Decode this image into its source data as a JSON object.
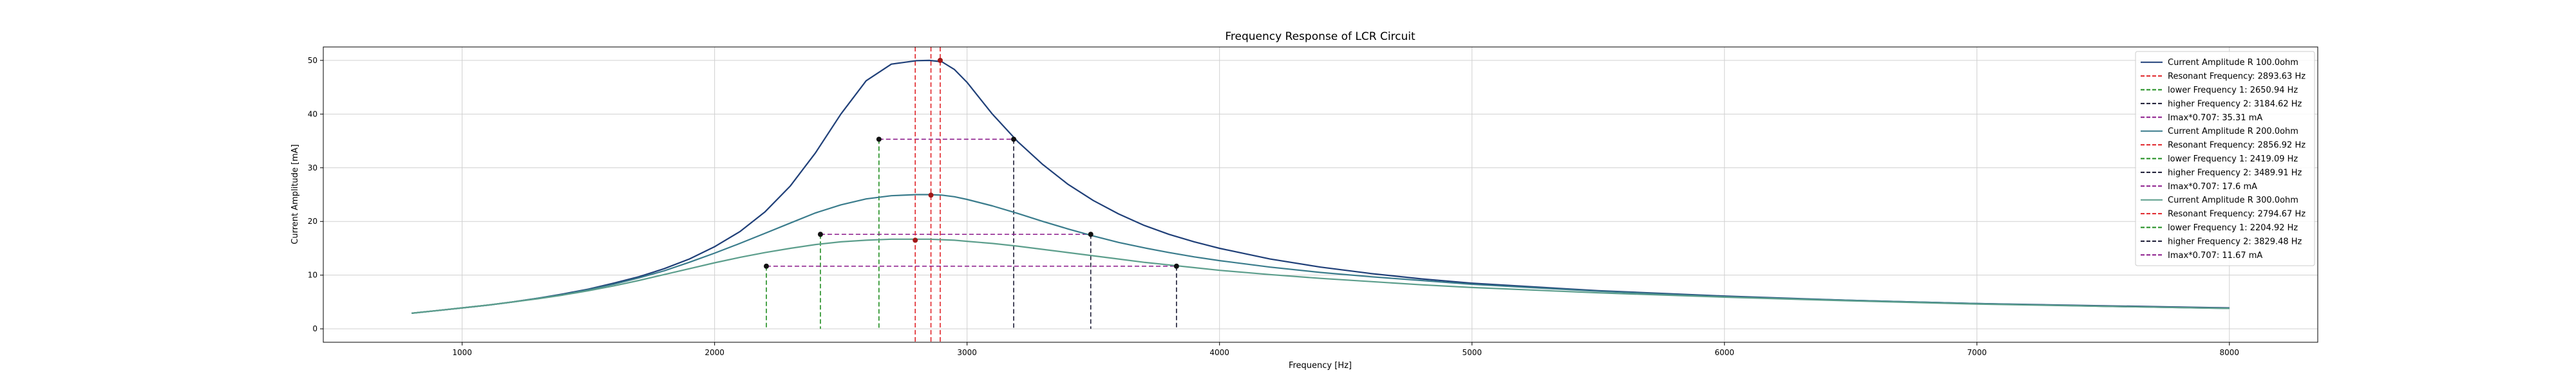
{
  "chart_data": {
    "type": "line",
    "title": "Frequency Response of LCR Circuit",
    "xlabel": "Frequency [Hz]",
    "ylabel": "Current Amplitude [mA]",
    "xlim": [
      450,
      8350
    ],
    "ylim": [
      -2.5,
      52.5
    ],
    "xticks": [
      1000,
      2000,
      3000,
      4000,
      5000,
      6000,
      7000,
      8000
    ],
    "yticks": [
      0,
      10,
      20,
      30,
      40,
      50
    ],
    "grid": true,
    "legend_position": "upper right",
    "x": [
      800,
      900,
      1000,
      1100,
      1200,
      1300,
      1400,
      1500,
      1600,
      1700,
      1800,
      1900,
      2000,
      2100,
      2200,
      2300,
      2400,
      2500,
      2600,
      2700,
      2800,
      2850,
      2900,
      2950,
      3000,
      3100,
      3200,
      3300,
      3400,
      3500,
      3600,
      3700,
      3800,
      3900,
      4000,
      4200,
      4400,
      4600,
      4800,
      5000,
      5500,
      6000,
      6500,
      7000,
      7500,
      8000
    ],
    "series": [
      {
        "name": "Current Amplitude R 100.0ohm",
        "color": "#1f3f78",
        "values": [
          2.9,
          3.4,
          3.9,
          4.4,
          5.0,
          5.7,
          6.5,
          7.4,
          8.5,
          9.7,
          11.2,
          13.0,
          15.3,
          18.1,
          21.8,
          26.6,
          32.8,
          40.0,
          46.2,
          49.3,
          49.95,
          50.0,
          49.75,
          48.3,
          45.9,
          40.0,
          34.9,
          30.6,
          26.9,
          23.9,
          21.4,
          19.3,
          17.6,
          16.2,
          15.0,
          13.0,
          11.5,
          10.3,
          9.3,
          8.5,
          7.1,
          6.1,
          5.3,
          4.7,
          4.3,
          3.9
        ]
      },
      {
        "name": "Current Amplitude R 200.0ohm",
        "color": "#3a7c8c",
        "values": [
          2.9,
          3.4,
          3.9,
          4.4,
          5.0,
          5.7,
          6.4,
          7.3,
          8.3,
          9.5,
          10.8,
          12.4,
          14.1,
          15.9,
          17.8,
          19.7,
          21.6,
          23.1,
          24.2,
          24.8,
          25.0,
          25.0,
          24.9,
          24.6,
          24.1,
          22.9,
          21.5,
          20.0,
          18.6,
          17.3,
          16.1,
          15.1,
          14.2,
          13.4,
          12.7,
          11.5,
          10.5,
          9.7,
          9.0,
          8.3,
          7.0,
          6.0,
          5.3,
          4.7,
          4.2,
          3.8
        ]
      },
      {
        "name": "Current Amplitude R 300.0ohm",
        "color": "#5c9e8c",
        "values": [
          2.9,
          3.4,
          3.9,
          4.4,
          5.0,
          5.6,
          6.3,
          7.1,
          8.0,
          9.0,
          10.1,
          11.2,
          12.3,
          13.3,
          14.2,
          15.0,
          15.7,
          16.2,
          16.5,
          16.7,
          16.7,
          16.7,
          16.6,
          16.5,
          16.3,
          15.9,
          15.4,
          14.8,
          14.2,
          13.6,
          13.0,
          12.4,
          11.9,
          11.4,
          10.9,
          10.1,
          9.4,
          8.8,
          8.2,
          7.7,
          6.7,
          5.9,
          5.2,
          4.6,
          4.2,
          3.8
        ]
      }
    ],
    "markers": [
      {
        "series": 0,
        "resonant": [
          2893.63,
          50.0
        ],
        "lower": [
          2650.94,
          35.31
        ],
        "higher": [
          3184.62,
          35.31
        ],
        "imax707": 35.31
      },
      {
        "series": 1,
        "resonant": [
          2856.92,
          24.9
        ],
        "lower": [
          2419.09,
          17.6
        ],
        "higher": [
          3489.91,
          17.6
        ],
        "imax707": 17.6
      },
      {
        "series": 2,
        "resonant": [
          2794.67,
          16.5
        ],
        "lower": [
          2204.92,
          11.67
        ],
        "higher": [
          3829.48,
          11.67
        ],
        "imax707": 11.67
      }
    ],
    "legend": [
      {
        "label": "Current Amplitude R 100.0ohm",
        "style": "solid",
        "color": "#1f3f78"
      },
      {
        "label": "Resonant Frequency: 2893.63 Hz",
        "style": "dashed",
        "color": "#e0252a"
      },
      {
        "label": "lower Frequency 1: 2650.94 Hz",
        "style": "dashed",
        "color": "#1e8c1e"
      },
      {
        "label": "higher Frequency 2: 3184.62 Hz",
        "style": "dashed",
        "color": "#1a1a33"
      },
      {
        "label": "Imax*0.707: 35.31 mA",
        "style": "dashed",
        "color": "#8b1a8b"
      },
      {
        "label": "Current Amplitude R 200.0ohm",
        "style": "solid",
        "color": "#3a7c8c"
      },
      {
        "label": "Resonant Frequency: 2856.92 Hz",
        "style": "dashed",
        "color": "#e0252a"
      },
      {
        "label": "lower Frequency 1: 2419.09 Hz",
        "style": "dashed",
        "color": "#1e8c1e"
      },
      {
        "label": "higher Frequency 2: 3489.91 Hz",
        "style": "dashed",
        "color": "#1a1a33"
      },
      {
        "label": "Imax*0.707: 17.6 mA",
        "style": "dashed",
        "color": "#8b1a8b"
      },
      {
        "label": "Current Amplitude R 300.0ohm",
        "style": "solid",
        "color": "#5c9e8c"
      },
      {
        "label": "Resonant Frequency: 2794.67 Hz",
        "style": "dashed",
        "color": "#e0252a"
      },
      {
        "label": "lower Frequency 1: 2204.92 Hz",
        "style": "dashed",
        "color": "#1e8c1e"
      },
      {
        "label": "higher Frequency 2: 3829.48 Hz",
        "style": "dashed",
        "color": "#1a1a33"
      },
      {
        "label": "Imax*0.707: 11.67 mA",
        "style": "dashed",
        "color": "#8b1a8b"
      }
    ],
    "colors": {
      "resonant": "#e0252a",
      "lower": "#1e8c1e",
      "higher": "#1a1a33",
      "imax": "#8b1a8b",
      "marker_resonant": "#a01818",
      "marker_other": "#111111",
      "grid": "#d0d0d0"
    }
  }
}
